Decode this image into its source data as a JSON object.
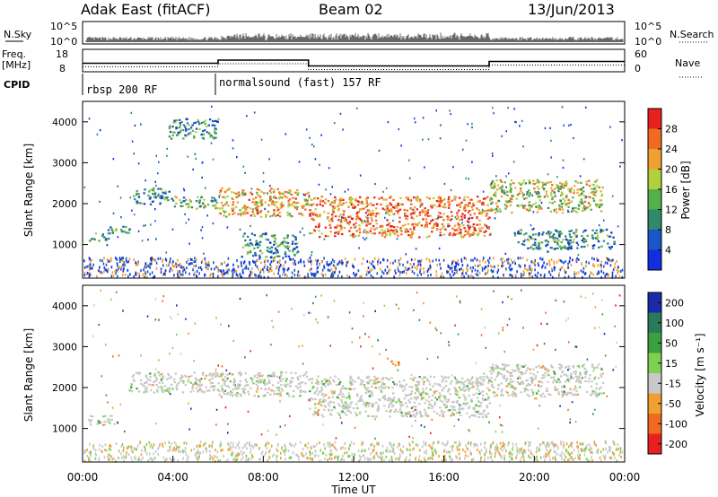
{
  "header": {
    "station": "Adak East (fitACF)",
    "beam": "Beam 02",
    "date": "13/Jun/2013"
  },
  "nsky_panel": {
    "left_label": "N.Sky",
    "right_label": "N.Search",
    "ticks_left": [
      "10^5",
      "10^0"
    ],
    "ticks_right": [
      "10^5",
      "10^0"
    ]
  },
  "freq_panel": {
    "left_label_1": "Freq.",
    "left_label_2": "[MHz]",
    "right_label": "Nave",
    "ticks_left": [
      "18",
      "8"
    ],
    "ticks_right": [
      "60",
      "0"
    ],
    "freq_mhz": [
      {
        "x": 0,
        "y": 11.8
      },
      {
        "x": 6,
        "y": 11.8
      },
      {
        "x": 6,
        "y": 13.2
      },
      {
        "x": 10,
        "y": 13.2
      },
      {
        "x": 10,
        "y": 10.6
      },
      {
        "x": 18,
        "y": 10.6
      },
      {
        "x": 18,
        "y": 12.6
      },
      {
        "x": 24,
        "y": 12.6
      }
    ]
  },
  "cpid_panel": {
    "label": "CPID",
    "segments": [
      {
        "start_hour": 0,
        "text": "rbsp 200 RF"
      },
      {
        "start_hour": 6,
        "text": "normalsound (fast) 157 RF"
      }
    ]
  },
  "chart_data": [
    {
      "type": "heatmap",
      "name": "power",
      "ylabel": "Slant Range [km]",
      "xlim": [
        0,
        24
      ],
      "ylim": [
        180,
        4500
      ],
      "y_ticks": [
        1000,
        2000,
        3000,
        4000
      ],
      "colorbar": {
        "label": "Power [dB]",
        "ticks": [
          "4",
          "8",
          "12",
          "16",
          "20",
          "24",
          "28"
        ],
        "colors": [
          "#1030e0",
          "#1a56c8",
          "#2e8a6a",
          "#54b04a",
          "#b0d040",
          "#f0a030",
          "#f06a20",
          "#e82020"
        ]
      },
      "features": [
        {
          "hours": [
            0.2,
            1.2
          ],
          "range_km": [
            1100,
            1300
          ],
          "level": 2
        },
        {
          "hours": [
            1.0,
            2.2
          ],
          "range_km": [
            1300,
            1500
          ],
          "level": 2
        },
        {
          "hours": [
            2.2,
            4.0
          ],
          "range_km": [
            2000,
            2400
          ],
          "level": 2
        },
        {
          "hours": [
            4.0,
            6.0
          ],
          "range_km": [
            1900,
            2200
          ],
          "level": 3
        },
        {
          "hours": [
            3.8,
            6.0
          ],
          "range_km": [
            3600,
            4100
          ],
          "level": 2
        },
        {
          "hours": [
            6.0,
            10.0
          ],
          "range_km": [
            1700,
            2400
          ],
          "level": 5
        },
        {
          "hours": [
            7.0,
            9.5
          ],
          "range_km": [
            700,
            1300
          ],
          "level": 2
        },
        {
          "hours": [
            10.0,
            18.0
          ],
          "range_km": [
            1200,
            2200
          ],
          "level": 6
        },
        {
          "hours": [
            18.0,
            23.0
          ],
          "range_km": [
            1800,
            2600
          ],
          "level": 4
        },
        {
          "hours": [
            19.0,
            23.5
          ],
          "range_km": [
            900,
            1400
          ],
          "level": 2
        }
      ]
    },
    {
      "type": "heatmap",
      "name": "velocity",
      "ylabel": "Slant Range [km]",
      "xlim": [
        0,
        24
      ],
      "ylim": [
        180,
        4500
      ],
      "y_ticks": [
        1000,
        2000,
        3000,
        4000
      ],
      "x_ticks": [
        "00:00",
        "04:00",
        "08:00",
        "12:00",
        "16:00",
        "20:00",
        "00:00"
      ],
      "xlabel": "Time UT",
      "colorbar": {
        "label": "Velocity [m s⁻¹]",
        "ticks": [
          "200",
          "100",
          "50",
          "15",
          "-15",
          "-50",
          "-100",
          "-200"
        ],
        "colors": [
          "#1a2aa8",
          "#2a7a5a",
          "#3aa040",
          "#80d050",
          "#c8c8c8",
          "#f0a030",
          "#f06a20",
          "#e82020"
        ]
      },
      "features": [
        {
          "hours": [
            0.2,
            1.5
          ],
          "range_km": [
            1100,
            1350
          ],
          "class": "gray"
        },
        {
          "hours": [
            2.0,
            6.0
          ],
          "range_km": [
            1900,
            2400
          ],
          "class": "gray"
        },
        {
          "hours": [
            6.0,
            10.0
          ],
          "range_km": [
            1800,
            2400
          ],
          "class": "gray"
        },
        {
          "hours": [
            10.0,
            18.0
          ],
          "range_km": [
            1300,
            2300
          ],
          "class": "gray"
        },
        {
          "hours": [
            13.6,
            14.0
          ],
          "range_km": [
            2500,
            2700
          ],
          "class": "orange"
        },
        {
          "hours": [
            18.0,
            23.0
          ],
          "range_km": [
            1800,
            2600
          ],
          "class": "gray"
        }
      ]
    }
  ]
}
